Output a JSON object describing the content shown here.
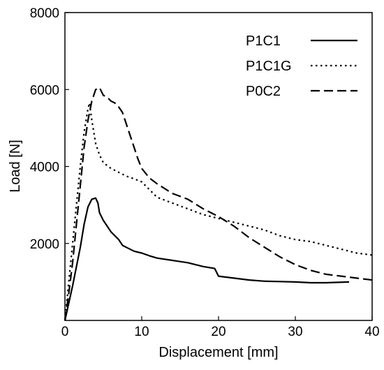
{
  "chart_data": {
    "type": "line",
    "title": "",
    "xlabel": "Displacement [mm]",
    "ylabel": "Load [N]",
    "xlim": [
      0,
      40
    ],
    "ylim": [
      0,
      8000
    ],
    "x_ticks": [
      0,
      10,
      20,
      30,
      40
    ],
    "y_ticks": [
      2000,
      4000,
      6000,
      8000
    ],
    "grid": false,
    "legend_position": "top-right",
    "series": [
      {
        "name": "P1C1",
        "style": "solid",
        "color": "#000000",
        "x": [
          0,
          0.5,
          1,
          1.5,
          2,
          2.5,
          3,
          3.5,
          4,
          4.3,
          4.5,
          5,
          5.5,
          6,
          6.5,
          7,
          7.5,
          8,
          9,
          10,
          11,
          12,
          14,
          16,
          18,
          19.5,
          20,
          22,
          24,
          26,
          28,
          30,
          32,
          34,
          37
        ],
        "y": [
          0,
          450,
          900,
          1400,
          1900,
          2500,
          2950,
          3150,
          3180,
          3050,
          2800,
          2600,
          2450,
          2300,
          2200,
          2100,
          1950,
          1900,
          1800,
          1750,
          1680,
          1620,
          1560,
          1500,
          1400,
          1350,
          1150,
          1100,
          1050,
          1020,
          1010,
          1000,
          980,
          980,
          1000
        ]
      },
      {
        "name": "P1C1G",
        "style": "dotted",
        "color": "#000000",
        "x": [
          0,
          0.5,
          1,
          1.5,
          2,
          2.5,
          3,
          3.2,
          3.5,
          4,
          4.5,
          5,
          6,
          7,
          8,
          9,
          10,
          11,
          12,
          14,
          16,
          18,
          20,
          22,
          24,
          26,
          28,
          30,
          32,
          34,
          36,
          38,
          40
        ],
        "y": [
          0,
          1000,
          2000,
          3000,
          4000,
          4900,
          5500,
          5650,
          5200,
          4600,
          4300,
          4100,
          3950,
          3850,
          3750,
          3680,
          3600,
          3400,
          3200,
          3050,
          2900,
          2750,
          2650,
          2550,
          2450,
          2350,
          2200,
          2100,
          2050,
          1950,
          1850,
          1750,
          1700
        ]
      },
      {
        "name": "P0C2",
        "style": "dashed",
        "color": "#000000",
        "x": [
          0,
          0.5,
          1,
          1.5,
          2,
          2.5,
          3,
          3.5,
          4,
          4.5,
          5,
          5.5,
          6,
          6.5,
          7,
          7.5,
          8,
          8.5,
          9,
          9.5,
          10,
          11,
          12,
          14,
          16,
          18,
          20,
          22,
          24,
          26,
          28,
          30,
          32,
          34,
          36,
          38,
          40
        ],
        "y": [
          0,
          700,
          1500,
          2500,
          3500,
          4500,
          5200,
          5700,
          6000,
          6050,
          5850,
          5800,
          5700,
          5650,
          5550,
          5400,
          5100,
          4800,
          4500,
          4200,
          3950,
          3700,
          3550,
          3300,
          3150,
          2900,
          2700,
          2450,
          2150,
          1900,
          1650,
          1450,
          1300,
          1200,
          1150,
          1100,
          1050
        ]
      }
    ]
  }
}
